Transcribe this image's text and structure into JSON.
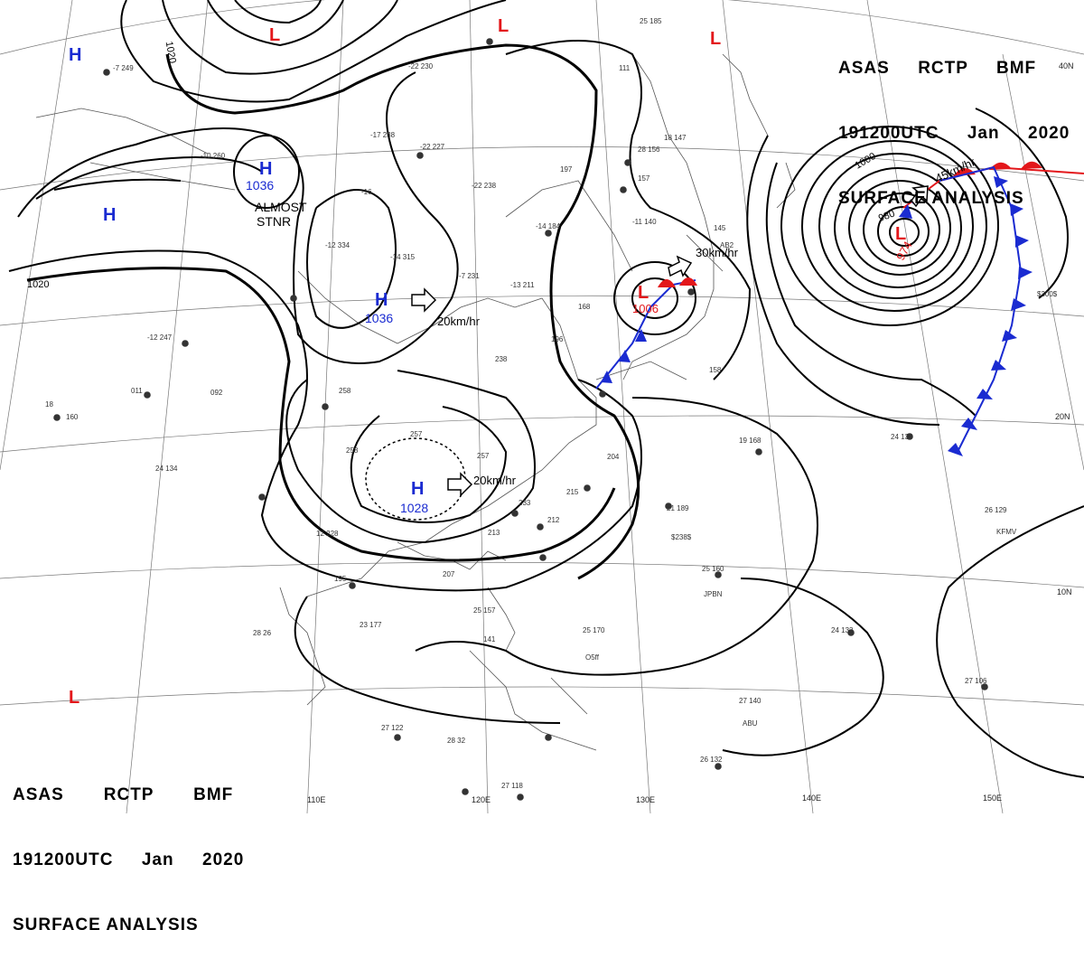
{
  "title": {
    "line1": [
      "ASAS",
      "RCTP",
      "BMF"
    ],
    "line2": [
      "191200UTC",
      "Jan",
      "2020"
    ],
    "line3": "SURFACE ANALYSIS"
  },
  "colors": {
    "high": "#1a2bd1",
    "low": "#e3171b",
    "isobar": "#000000",
    "coast": "#777777",
    "grid": "#555555"
  },
  "pressure_centers": [
    {
      "id": "h-nw",
      "type": "H",
      "value": ""
    },
    {
      "id": "h-w",
      "type": "H",
      "value": ""
    },
    {
      "id": "h-1036a",
      "type": "H",
      "value": "1036"
    },
    {
      "id": "h-1036b",
      "type": "H",
      "value": "1036"
    },
    {
      "id": "h-1028",
      "type": "H",
      "value": "1028"
    },
    {
      "id": "l-top1",
      "type": "L",
      "value": ""
    },
    {
      "id": "l-top2",
      "type": "L",
      "value": ""
    },
    {
      "id": "l-top3",
      "type": "L",
      "value": ""
    },
    {
      "id": "l-1006",
      "type": "L",
      "value": "1006"
    },
    {
      "id": "l-974",
      "type": "L",
      "value": "974"
    },
    {
      "id": "l-sw",
      "type": "L",
      "value": ""
    }
  ],
  "annotations": {
    "almost_stnr": [
      "ALMOST",
      "STNR"
    ],
    "motions": [
      "20km/hr",
      "20km/hr",
      "30km/hr",
      "45km/hr"
    ]
  },
  "isobar_labels": [
    "1020",
    "1020",
    "1000",
    "980"
  ],
  "longitude_labels": [
    "110E",
    "120E",
    "130E",
    "140E",
    "150E"
  ],
  "latitude_labels": [
    "40N",
    "20N",
    "10N"
  ],
  "station_labels": [
    "KFMV",
    "JPBN",
    "ABU",
    "O5ff",
    "$238$",
    "$300$",
    "AB2"
  ]
}
